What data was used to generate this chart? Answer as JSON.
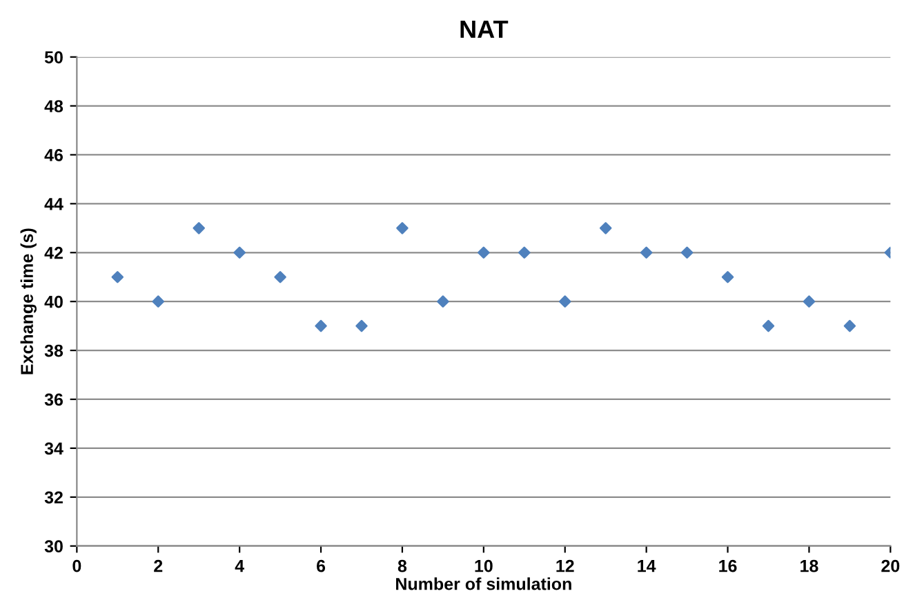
{
  "chart_data": {
    "type": "scatter",
    "title": "NAT",
    "xlabel": "Number of simulation",
    "ylabel": "Exchange time (s)",
    "x": [
      1,
      2,
      3,
      4,
      5,
      6,
      7,
      8,
      9,
      10,
      11,
      12,
      13,
      14,
      15,
      16,
      17,
      18,
      19,
      20
    ],
    "series": [
      {
        "color": "#4f81bd",
        "values": [
          41,
          40,
          43,
          42,
          41,
          39,
          39,
          43,
          40,
          42,
          42,
          40,
          43,
          42,
          42,
          41,
          39,
          40,
          39,
          42
        ]
      }
    ],
    "xlim": [
      0,
      20
    ],
    "xticks": [
      0,
      2,
      4,
      6,
      8,
      10,
      12,
      14,
      16,
      18,
      20
    ],
    "ylim": [
      30,
      50
    ],
    "yticks": [
      30,
      32,
      34,
      36,
      38,
      40,
      42,
      44,
      46,
      48,
      50
    ],
    "grid": "y",
    "marker": "diamond",
    "legend": false
  }
}
